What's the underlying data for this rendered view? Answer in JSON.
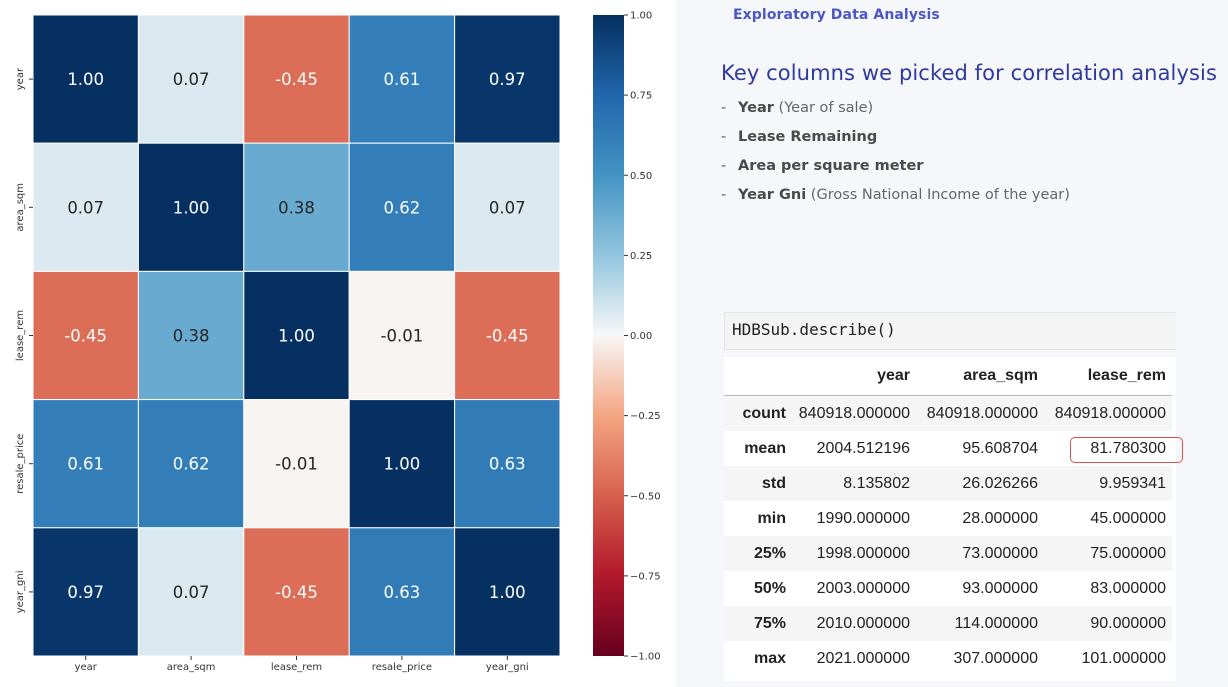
{
  "chart_data": {
    "type": "heatmap",
    "rows": [
      "year",
      "area_sqm",
      "lease_rem",
      "resale_price",
      "year_gni"
    ],
    "cols": [
      "year",
      "area_sqm",
      "lease_rem",
      "resale_price",
      "year_gni"
    ],
    "values": [
      [
        1.0,
        0.07,
        -0.45,
        0.61,
        0.97
      ],
      [
        0.07,
        1.0,
        0.38,
        0.62,
        0.07
      ],
      [
        -0.45,
        0.38,
        1.0,
        -0.01,
        -0.45
      ],
      [
        0.61,
        0.62,
        -0.01,
        1.0,
        0.63
      ],
      [
        0.97,
        0.07,
        -0.45,
        0.63,
        1.0
      ]
    ],
    "colormap": "RdBu",
    "vmin": -1.0,
    "vmax": 1.0,
    "colorbar_ticks": [
      "1.00",
      "0.75",
      "0.50",
      "0.25",
      "0.00",
      "−0.25",
      "−0.50",
      "−0.75",
      "−1.00"
    ],
    "colorbar_tick_values": [
      1.0,
      0.75,
      0.5,
      0.25,
      0.0,
      -0.25,
      -0.5,
      -0.75,
      -1.0
    ],
    "title": "",
    "xlabel": "",
    "ylabel": ""
  },
  "panel": {
    "section_title": "Exploratory Data Analysis",
    "heading": "Key columns we picked for correlation analysis",
    "items": [
      {
        "bold": "Year",
        "desc": " (Year of sale)"
      },
      {
        "bold": "Lease Remaining",
        "desc": ""
      },
      {
        "bold": "Area per square meter",
        "desc": ""
      },
      {
        "bold": "Year Gni",
        "desc": " (Gross National Income of the year)"
      }
    ],
    "dash": "-"
  },
  "code": {
    "text": "HDBSub.describe()"
  },
  "describe_table": {
    "columns": [
      "",
      "year",
      "area_sqm",
      "lease_rem"
    ],
    "rows": [
      {
        "label": "count",
        "values": [
          "840918.000000",
          "840918.000000",
          "840918.000000"
        ]
      },
      {
        "label": "mean",
        "values": [
          "2004.512196",
          "95.608704",
          "81.780300"
        ]
      },
      {
        "label": "std",
        "values": [
          "8.135802",
          "26.026266",
          "9.959341"
        ]
      },
      {
        "label": "min",
        "values": [
          "1990.000000",
          "28.000000",
          "45.000000"
        ]
      },
      {
        "label": "25%",
        "values": [
          "1998.000000",
          "73.000000",
          "75.000000"
        ]
      },
      {
        "label": "50%",
        "values": [
          "2003.000000",
          "93.000000",
          "83.000000"
        ]
      },
      {
        "label": "75%",
        "values": [
          "2010.000000",
          "114.000000",
          "90.000000"
        ]
      },
      {
        "label": "max",
        "values": [
          "2021.000000",
          "307.000000",
          "101.000000"
        ]
      }
    ],
    "highlight_color": "#d9534f"
  }
}
